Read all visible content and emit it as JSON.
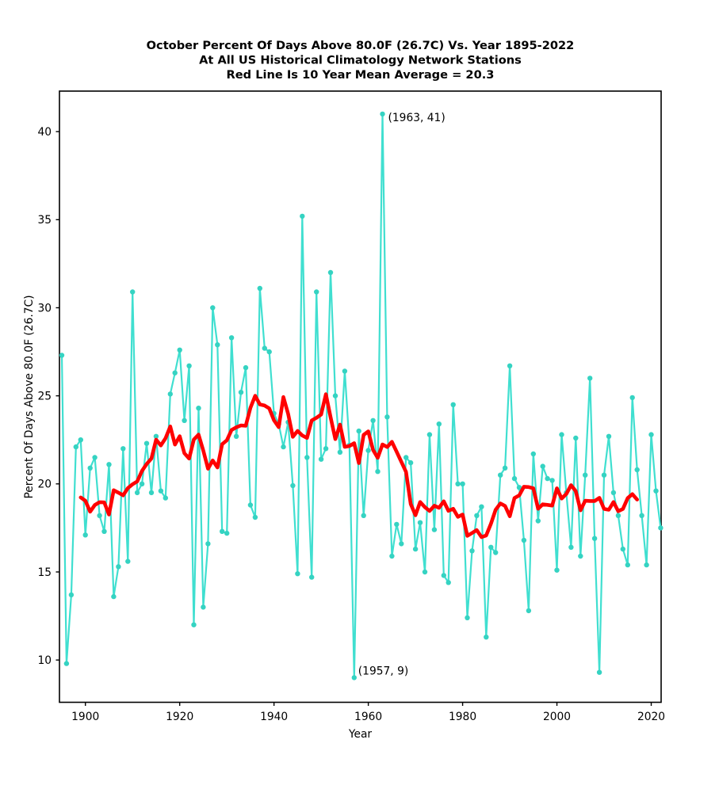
{
  "figure": {
    "title_line1": "October Percent Of Days Above 80.0F (26.7C) Vs. Year 1895-2022",
    "title_line2": "At All US Historical Climatology Network Stations",
    "title_line3": "Red Line Is 10 Year Mean  Average = 20.3"
  },
  "chart_data": {
    "type": "line",
    "title": "October Percent Of Days Above 80.0F (26.7C) Vs. Year 1895-2022 At All US Historical Climatology Network Stations Red Line Is 10 Year Mean  Average = 20.3",
    "xlabel": "Year",
    "ylabel": "Percent Of Days Above 80.0F (26.7C)",
    "xlim": [
      1894.5,
      2022.1
    ],
    "ylim": [
      7.6,
      42.3
    ],
    "x_ticks": [
      1900,
      1920,
      1940,
      1960,
      1980,
      2000,
      2020
    ],
    "y_ticks": [
      10,
      15,
      20,
      25,
      30,
      35,
      40
    ],
    "grid": false,
    "legend_position": "none",
    "stated_average": 20.3,
    "start_year": 1895,
    "end_year": 2022,
    "series": [
      {
        "name": "annual-percent-days-above-80F",
        "style": "line-with-circle-markers",
        "color": "#40dfd0",
        "marker_color": "#35d3c2",
        "values": [
          27.3,
          9.8,
          13.7,
          22.1,
          22.5,
          17.1,
          20.9,
          21.5,
          18.2,
          17.3,
          21.1,
          13.6,
          15.3,
          22.0,
          15.6,
          30.9,
          19.5,
          20.0,
          22.3,
          19.5,
          22.7,
          19.6,
          19.2,
          25.1,
          26.3,
          27.6,
          23.6,
          26.7,
          12.0,
          24.3,
          13.0,
          16.6,
          30.0,
          27.9,
          17.3,
          17.2,
          28.3,
          22.7,
          25.2,
          26.6,
          18.8,
          18.1,
          31.1,
          27.7,
          27.5,
          24.0,
          23.4,
          22.1,
          23.5,
          19.9,
          14.9,
          35.2,
          21.5,
          14.7,
          30.9,
          21.4,
          22.0,
          32.0,
          25.0,
          21.8,
          26.4,
          22.2,
          9.0,
          23.0,
          18.2,
          21.9,
          23.6,
          20.7,
          41.0,
          23.8,
          15.9,
          17.7,
          16.6,
          21.5,
          21.2,
          16.3,
          17.8,
          15.0,
          22.8,
          17.4,
          23.4,
          14.8,
          14.4,
          24.5,
          20.0,
          20.0,
          12.4,
          16.2,
          18.2,
          18.7,
          11.3,
          16.4,
          16.1,
          20.5,
          20.9,
          26.7,
          20.3,
          19.8,
          16.8,
          12.8,
          21.7,
          17.9,
          21.0,
          20.3,
          20.2,
          15.1,
          22.8,
          19.5,
          16.4,
          22.6,
          15.9,
          20.5,
          26.0,
          16.9,
          9.3,
          20.5,
          22.7,
          19.5,
          18.2,
          16.3,
          15.4,
          24.9,
          20.8,
          18.2,
          15.4,
          22.8,
          19.6,
          17.5
        ]
      },
      {
        "name": "10-year-mean",
        "style": "thick-line",
        "color": "#ff0000",
        "window_years": 10,
        "derivation": "centered 10-year mean of annual values",
        "span_years": [
          1899,
          2017
        ]
      }
    ],
    "annotations": [
      {
        "text": "(1963, 41)",
        "x": 1963,
        "y": 41
      },
      {
        "text": "(1957, 9)",
        "x": 1957,
        "y": 9
      }
    ]
  }
}
